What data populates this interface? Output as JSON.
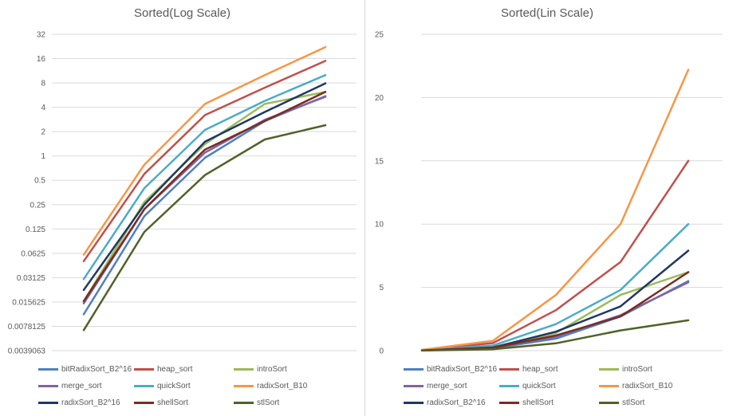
{
  "chart_data": [
    {
      "type": "line",
      "title": "Sorted(Log Scale)",
      "yscale": "log2",
      "ylim": [
        0.0039063,
        32
      ],
      "ytick_labels": [
        "32",
        "16",
        "8",
        "4",
        "2",
        "1",
        "0.5",
        "0.25",
        "0.125",
        "0.0625",
        "0.03125",
        "0.015625",
        "0.0078125",
        "0.0039063"
      ],
      "grid": true,
      "legend": "bottom",
      "series_ref": "shared"
    },
    {
      "type": "line",
      "title": "Sorted(Lin Scale)",
      "yscale": "linear",
      "ylim": [
        0,
        25
      ],
      "ytick_labels": [
        "25",
        "20",
        "15",
        "10",
        "5",
        "0"
      ],
      "grid": true,
      "legend": "bottom",
      "series_ref": "shared"
    }
  ],
  "series": [
    {
      "name": "bitRadixSort_B2^16",
      "color": "#4f81bd",
      "values": [
        0.011,
        0.18,
        0.95,
        2.7,
        5.5
      ]
    },
    {
      "name": "heap_sort",
      "color": "#c0504d",
      "values": [
        0.05,
        0.6,
        3.2,
        7.0,
        15.0
      ]
    },
    {
      "name": "introSort",
      "color": "#9bbb59",
      "values": [
        0.016,
        0.27,
        1.4,
        4.4,
        6.2
      ]
    },
    {
      "name": "merge_sort",
      "color": "#8064a2",
      "values": [
        0.015,
        0.22,
        1.1,
        2.8,
        5.4
      ]
    },
    {
      "name": "quickSort",
      "color": "#4bacc6",
      "values": [
        0.03,
        0.4,
        2.1,
        4.8,
        10.0
      ]
    },
    {
      "name": "radixSort_B10",
      "color": "#f79646",
      "values": [
        0.06,
        0.78,
        4.4,
        10.0,
        22.2
      ]
    },
    {
      "name": "radixSort_B2^16",
      "color": "#1f3864",
      "values": [
        0.022,
        0.25,
        1.5,
        3.5,
        7.9
      ]
    },
    {
      "name": "shellSort",
      "color": "#7b2c20",
      "values": [
        0.016,
        0.22,
        1.2,
        2.7,
        6.2
      ]
    },
    {
      "name": "stlSort",
      "color": "#4f6228",
      "values": [
        0.007,
        0.115,
        0.58,
        1.6,
        2.4
      ]
    }
  ]
}
